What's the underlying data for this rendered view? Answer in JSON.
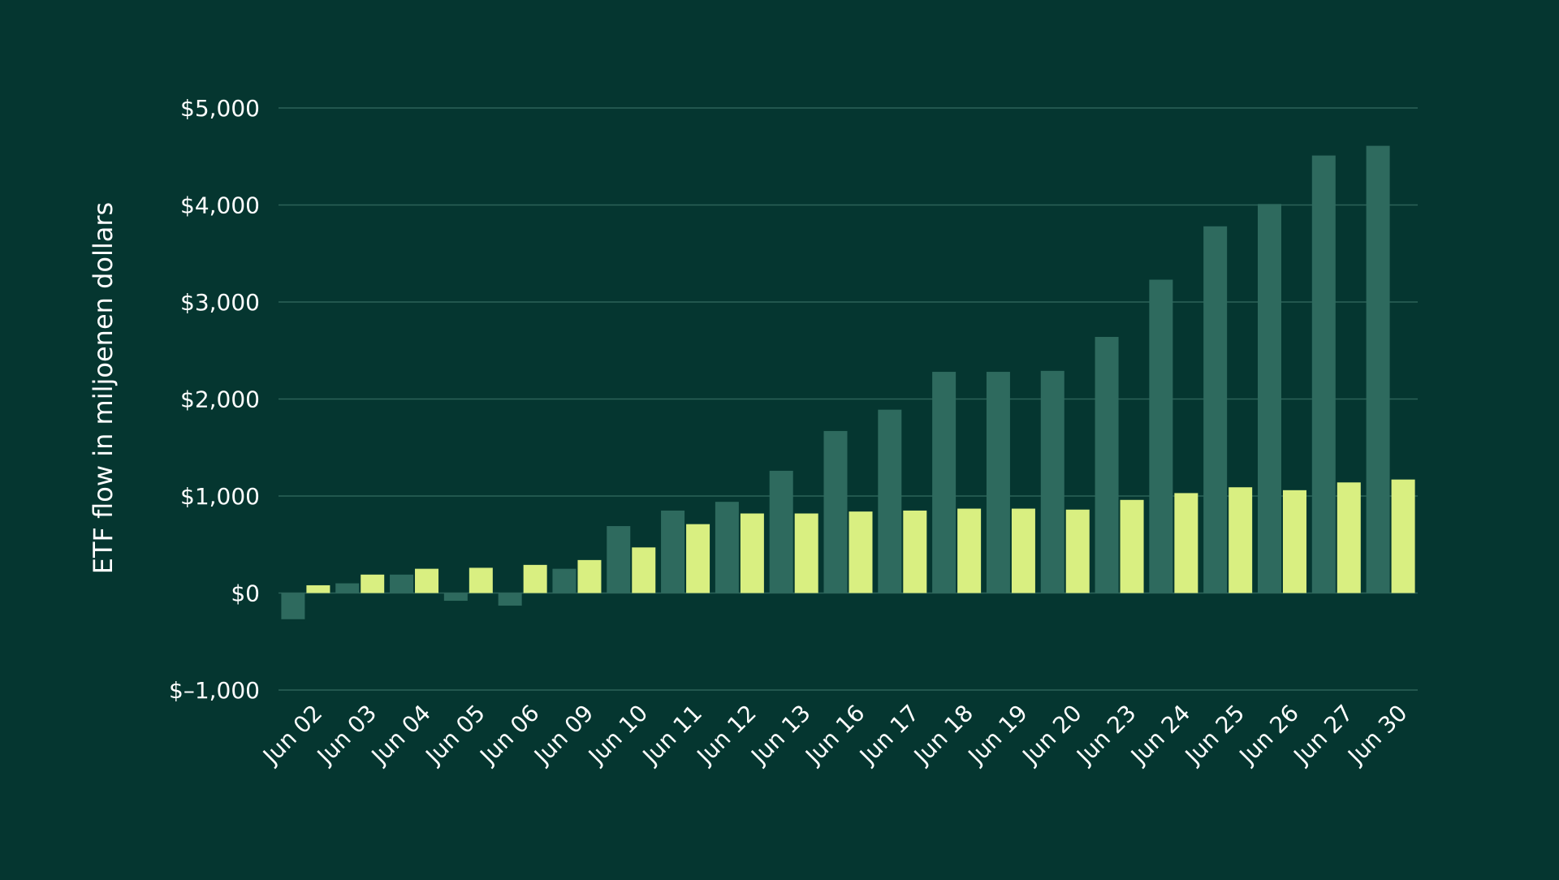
{
  "colors": {
    "background": "#053630",
    "gridline": "#2D6258",
    "text": "#FFFFFF"
  },
  "chart_data": {
    "type": "bar",
    "title": "",
    "xlabel": "",
    "ylabel": "ETF flow in miljoenen dollars",
    "ylim": [
      -1000,
      5000
    ],
    "y_ticks": [
      -1000,
      0,
      1000,
      2000,
      3000,
      4000,
      5000
    ],
    "y_tick_labels": [
      "$–1,000",
      "$0",
      "$1,000",
      "$2,000",
      "$3,000",
      "$4,000",
      "$5,000"
    ],
    "grid": true,
    "categories": [
      "Jun 02",
      "Jun 03",
      "Jun 04",
      "Jun 05",
      "Jun 06",
      "Jun 09",
      "Jun 10",
      "Jun 11",
      "Jun 12",
      "Jun 13",
      "Jun 16",
      "Jun 17",
      "Jun 18",
      "Jun 19",
      "Jun 20",
      "Jun 23",
      "Jun 24",
      "Jun 25",
      "Jun 26",
      "Jun 27",
      "Jun 30"
    ],
    "series": [
      {
        "name": "series-1",
        "color": "#2E6A5E",
        "values": [
          -270,
          100,
          190,
          -80,
          -130,
          250,
          690,
          850,
          940,
          1260,
          1670,
          1890,
          2280,
          2280,
          2290,
          2640,
          3230,
          3780,
          4010,
          4510,
          4610
        ]
      },
      {
        "name": "series-2",
        "color": "#D9EF81",
        "values": [
          80,
          190,
          250,
          260,
          290,
          340,
          470,
          710,
          820,
          820,
          840,
          850,
          870,
          870,
          860,
          960,
          1030,
          1090,
          1060,
          1140,
          1170
        ]
      }
    ]
  }
}
